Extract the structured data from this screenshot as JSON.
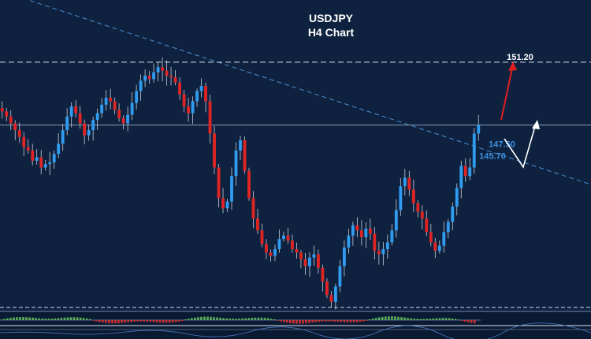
{
  "chart_data": {
    "type": "candlestick",
    "title": "USDJPY",
    "subtitle": "H4 Chart",
    "levels": [
      {
        "label": "151.20",
        "value": 151.2,
        "style": "dashed",
        "color": "#ffffff"
      },
      {
        "label": "147.50",
        "value": 147.5,
        "style": "solid",
        "color": "#3d8fe0"
      },
      {
        "label": "145.70",
        "value": 145.7,
        "style": "none",
        "color": "#3d8fe0"
      }
    ],
    "trendline": {
      "style": "dashed",
      "color": "#4a8fd0",
      "from": [
        0,
        155.4
      ],
      "to": [
        1,
        144.0
      ]
    },
    "ylim": [
      137.0,
      153.0
    ],
    "close_series": [
      148.3,
      148.0,
      147.6,
      147.2,
      146.8,
      146.2,
      146.0,
      145.4,
      145.6,
      145.0,
      145.2,
      145.3,
      145.8,
      146.4,
      147.2,
      148.0,
      148.6,
      148.2,
      147.6,
      146.9,
      147.2,
      147.8,
      148.2,
      148.7,
      149.1,
      148.9,
      148.4,
      147.9,
      147.6,
      148.1,
      148.8,
      149.5,
      150.1,
      150.4,
      150.2,
      150.6,
      150.9,
      150.7,
      150.4,
      150.3,
      150.0,
      149.3,
      148.6,
      148.2,
      148.9,
      149.5,
      149.8,
      148.9,
      147.0,
      145.0,
      143.2,
      142.6,
      143.0,
      144.5,
      146.0,
      146.6,
      144.8,
      143.2,
      142.0,
      141.3,
      140.5,
      140.0,
      139.8,
      140.2,
      140.8,
      141.0,
      140.7,
      140.2,
      140.0,
      139.6,
      139.2,
      139.7,
      139.9,
      139.1,
      138.3,
      137.5,
      137.1,
      138.0,
      139.2,
      140.3,
      141.0,
      141.6,
      141.3,
      140.9,
      141.4,
      141.1,
      140.1,
      139.9,
      140.2,
      140.6,
      141.3,
      142.5,
      143.9,
      144.4,
      143.7,
      142.9,
      142.4,
      142.0,
      141.2,
      140.6,
      140.1,
      140.4,
      141.2,
      141.8,
      142.7,
      143.8,
      145.1,
      144.5,
      145.0,
      147.0,
      147.5
    ],
    "indicator": {
      "type": "histogram",
      "colors": [
        "#5ab05a",
        "#d03030"
      ]
    },
    "grid": false
  }
}
